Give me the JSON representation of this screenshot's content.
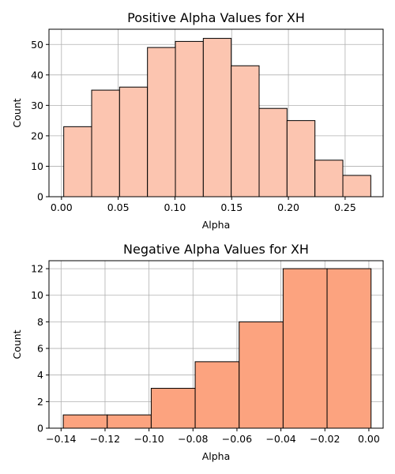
{
  "chart_data": [
    {
      "type": "bar",
      "subtype": "histogram",
      "title": "Positive Alpha Values for XH",
      "xlabel": "Alpha",
      "ylabel": "Count",
      "bin_edges": [
        0.002,
        0.0266,
        0.0512,
        0.0758,
        0.1004,
        0.125,
        0.1496,
        0.1742,
        0.1988,
        0.2234,
        0.248,
        0.2726
      ],
      "values": [
        23,
        35,
        36,
        49,
        51,
        52,
        43,
        29,
        25,
        12,
        7
      ],
      "xlim": [
        -0.011,
        0.2835
      ],
      "ylim": [
        0,
        55
      ],
      "xticks": [
        0.0,
        0.05,
        0.1,
        0.15,
        0.2,
        0.25
      ],
      "xtick_labels": [
        "0.00",
        "0.05",
        "0.10",
        "0.15",
        "0.20",
        "0.25"
      ],
      "yticks": [
        0,
        10,
        20,
        30,
        40,
        50
      ],
      "ytick_labels": [
        "0",
        "10",
        "20",
        "30",
        "40",
        "50"
      ],
      "grid": true,
      "bar_color": "#fcc5b0",
      "edge_color": "#000000"
    },
    {
      "type": "bar",
      "subtype": "histogram",
      "title": "Negative Alpha Values for XH",
      "xlabel": "Alpha",
      "ylabel": "Count",
      "bin_edges": [
        -0.139,
        -0.119,
        -0.099,
        -0.079,
        -0.059,
        -0.039,
        -0.019,
        0.001
      ],
      "values": [
        1,
        1,
        3,
        5,
        8,
        12,
        12
      ],
      "xlim": [
        -0.1455,
        0.0065
      ],
      "ylim": [
        0,
        12.6
      ],
      "xticks": [
        -0.14,
        -0.12,
        -0.1,
        -0.08,
        -0.06,
        -0.04,
        -0.02,
        0.0
      ],
      "xtick_labels": [
        "−0.14",
        "−0.12",
        "−0.10",
        "−0.08",
        "−0.06",
        "−0.04",
        "−0.02",
        "0.00"
      ],
      "yticks": [
        0,
        2,
        4,
        6,
        8,
        10,
        12
      ],
      "ytick_labels": [
        "0",
        "2",
        "4",
        "6",
        "8",
        "10",
        "12"
      ],
      "grid": true,
      "bar_color": "#fca37f",
      "edge_color": "#000000"
    }
  ]
}
